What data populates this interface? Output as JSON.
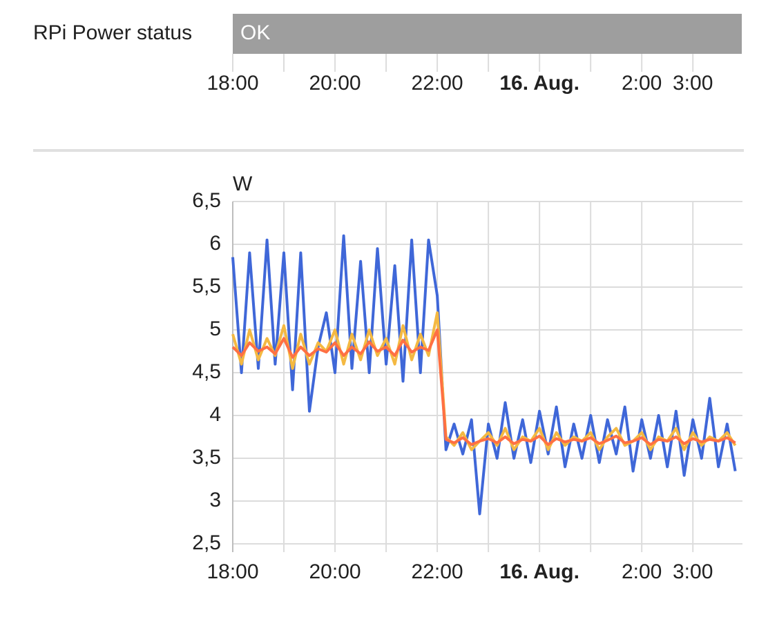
{
  "timeline": {
    "label": "RPi Power status",
    "state": "OK",
    "color": "#9e9e9e"
  },
  "chart_data": {
    "type": "line",
    "ylabel": "W",
    "x": [
      18,
      18.17,
      18.33,
      18.5,
      18.67,
      18.83,
      19,
      19.17,
      19.33,
      19.5,
      19.67,
      19.83,
      20,
      20.17,
      20.33,
      20.5,
      20.67,
      20.83,
      21,
      21.17,
      21.33,
      21.5,
      21.67,
      21.83,
      22,
      22.17,
      22.33,
      22.5,
      22.67,
      22.83,
      23,
      23.17,
      23.33,
      23.5,
      23.67,
      23.83,
      24,
      24.17,
      24.33,
      24.5,
      24.67,
      24.83,
      25,
      25.17,
      25.33,
      25.5,
      25.67,
      25.83,
      26,
      26.17,
      26.33,
      26.5,
      26.67,
      26.83,
      27,
      27.17,
      27.33,
      27.5,
      27.67,
      27.83
    ],
    "series": [
      {
        "color": "#3f67d8",
        "values": [
          5.85,
          4.5,
          5.9,
          4.55,
          6.05,
          4.6,
          5.9,
          4.3,
          5.9,
          4.05,
          4.8,
          5.2,
          4.5,
          6.1,
          4.55,
          5.8,
          4.5,
          5.95,
          4.6,
          5.75,
          4.4,
          6.05,
          4.5,
          6.05,
          5.4,
          3.6,
          3.9,
          3.55,
          3.95,
          2.85,
          3.9,
          3.5,
          4.15,
          3.5,
          3.95,
          3.45,
          4.05,
          3.55,
          4.1,
          3.4,
          3.9,
          3.5,
          4.0,
          3.45,
          3.95,
          3.55,
          4.1,
          3.35,
          3.95,
          3.5,
          4.0,
          3.4,
          4.05,
          3.3,
          3.95,
          3.5,
          4.2,
          3.4,
          3.9,
          3.35
        ]
      },
      {
        "color": "#f4b942",
        "values": [
          4.95,
          4.6,
          5.0,
          4.65,
          4.9,
          4.7,
          5.05,
          4.55,
          4.95,
          4.6,
          4.85,
          4.75,
          5.0,
          4.6,
          4.95,
          4.65,
          5.0,
          4.7,
          4.9,
          4.6,
          5.05,
          4.65,
          4.95,
          4.7,
          5.2,
          3.75,
          3.65,
          3.8,
          3.6,
          3.7,
          3.8,
          3.65,
          3.85,
          3.6,
          3.75,
          3.7,
          3.85,
          3.6,
          3.8,
          3.65,
          3.75,
          3.7,
          3.8,
          3.6,
          3.75,
          3.85,
          3.65,
          3.7,
          3.8,
          3.6,
          3.75,
          3.7,
          3.85,
          3.6,
          3.8,
          3.65,
          3.75,
          3.7,
          3.8,
          3.65
        ]
      },
      {
        "color": "#ff7043",
        "values": [
          4.8,
          4.7,
          4.85,
          4.75,
          4.8,
          4.72,
          4.9,
          4.68,
          4.8,
          4.7,
          4.78,
          4.74,
          4.85,
          4.7,
          4.8,
          4.72,
          4.86,
          4.75,
          4.8,
          4.7,
          4.88,
          4.74,
          4.8,
          4.76,
          5.0,
          3.72,
          3.68,
          3.74,
          3.66,
          3.7,
          3.73,
          3.68,
          3.75,
          3.67,
          3.72,
          3.7,
          3.76,
          3.66,
          3.73,
          3.69,
          3.72,
          3.7,
          3.74,
          3.67,
          3.71,
          3.76,
          3.68,
          3.7,
          3.74,
          3.66,
          3.72,
          3.7,
          3.75,
          3.67,
          3.73,
          3.69,
          3.72,
          3.7,
          3.74,
          3.68
        ]
      }
    ],
    "xlim": [
      18,
      27.97
    ],
    "xticks": [
      {
        "value": 18,
        "label": "18:00"
      },
      {
        "value": 19,
        "label": null
      },
      {
        "value": 20,
        "label": "20:00"
      },
      {
        "value": 21,
        "label": null
      },
      {
        "value": 22,
        "label": "22:00"
      },
      {
        "value": 23,
        "label": null
      },
      {
        "value": 24,
        "label": "16. Aug.",
        "bold": true
      },
      {
        "value": 25,
        "label": null
      },
      {
        "value": 26,
        "label": "2:00"
      },
      {
        "value": 27,
        "label": "3:00"
      }
    ],
    "ylim": [
      2.5,
      6.5
    ],
    "yticks": [
      {
        "value": 2.5,
        "label": "2,5"
      },
      3,
      {
        "value": 3.5,
        "label": "3,5"
      },
      4,
      {
        "value": 4.5,
        "label": "4,5"
      },
      5,
      {
        "value": 5.5,
        "label": "5,5"
      },
      6,
      {
        "value": 6.5,
        "label": "6,5"
      }
    ],
    "grid": true
  }
}
